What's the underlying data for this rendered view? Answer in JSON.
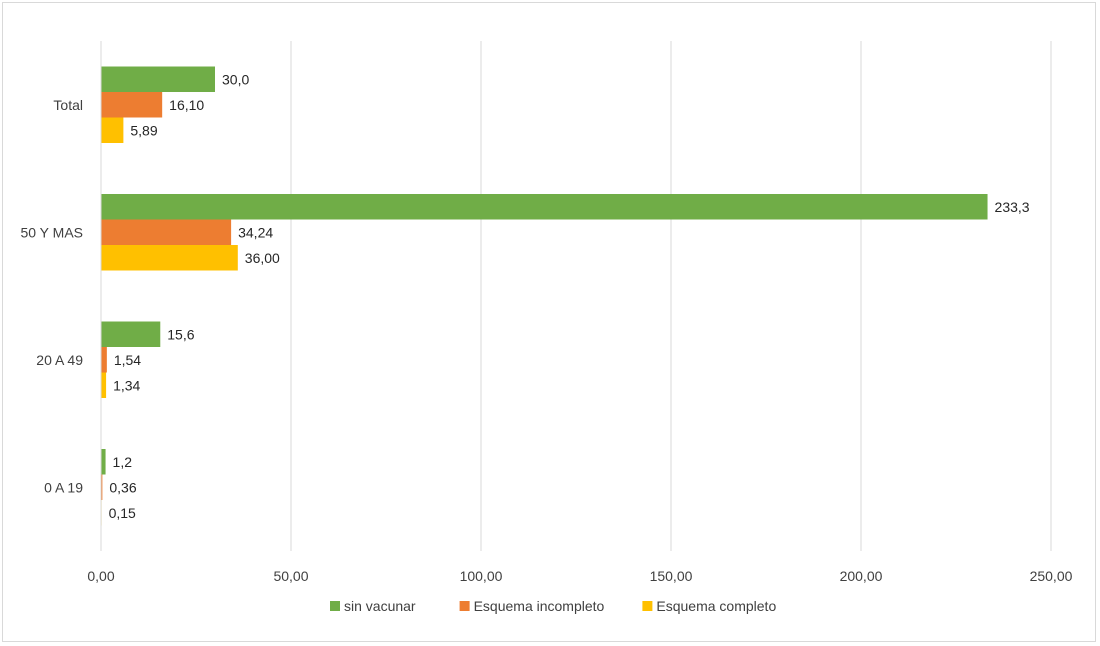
{
  "chart_data": {
    "type": "bar",
    "orientation": "horizontal",
    "categories": [
      "Total",
      "50 Y MAS",
      "20 A 49",
      "0 A 19"
    ],
    "series": [
      {
        "name": "sin vacunar",
        "color": "#70ad47",
        "values": [
          30.0,
          233.3,
          15.6,
          1.2
        ],
        "labels": [
          "30,0",
          "233,3",
          "15,6",
          "1,2"
        ]
      },
      {
        "name": "Esquema incompleto",
        "color": "#ed7d31",
        "values": [
          16.1,
          34.24,
          1.54,
          0.36
        ],
        "labels": [
          "16,10",
          "34,24",
          "1,54",
          "0,36"
        ]
      },
      {
        "name": "Esquema completo",
        "color": "#ffc000",
        "values": [
          5.89,
          36.0,
          1.34,
          0.15
        ],
        "labels": [
          "5,89",
          "36,00",
          "1,34",
          "0,15"
        ]
      }
    ],
    "xlim": [
      0,
      250
    ],
    "x_ticks": [
      0,
      50,
      100,
      150,
      200,
      250
    ],
    "x_tick_labels": [
      "0,00",
      "50,00",
      "100,00",
      "150,00",
      "200,00",
      "250,00"
    ],
    "grid": true,
    "legend_position": "bottom"
  }
}
